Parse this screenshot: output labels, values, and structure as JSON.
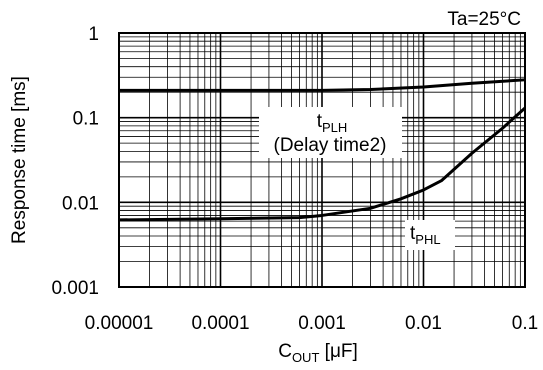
{
  "chart_data": {
    "type": "line",
    "annotation_condition": "Ta=25°C",
    "x_axis": {
      "label_main": "C",
      "label_sub": "OUT",
      "label_unit": " [μF]",
      "scale": "log",
      "range": [
        1e-05,
        0.1
      ],
      "tick_labels": [
        "0.00001",
        "0.0001",
        "0.001",
        "0.01",
        "0.1"
      ]
    },
    "y_axis": {
      "label": "Response time [ms]",
      "scale": "log",
      "range": [
        0.001,
        1
      ],
      "tick_labels": [
        "0.001",
        "0.01",
        "0.1",
        "1"
      ]
    },
    "grid": true,
    "series": [
      {
        "name": "tPLH",
        "label_main": "t",
        "label_sub": "PLH",
        "label_note": "(Delay time2)",
        "x": [
          1e-05,
          0.0001,
          0.001,
          0.003,
          0.01,
          0.03,
          0.1
        ],
        "y": [
          0.21,
          0.21,
          0.21,
          0.215,
          0.23,
          0.255,
          0.28
        ]
      },
      {
        "name": "tPHL",
        "label_main": "t",
        "label_sub": "PHL",
        "x": [
          1e-05,
          0.0001,
          0.0006,
          0.001,
          0.003,
          0.006,
          0.01,
          0.015,
          0.03,
          0.06,
          0.1
        ],
        "y": [
          0.0062,
          0.0064,
          0.0066,
          0.007,
          0.0085,
          0.011,
          0.014,
          0.018,
          0.038,
          0.075,
          0.13
        ]
      }
    ]
  }
}
